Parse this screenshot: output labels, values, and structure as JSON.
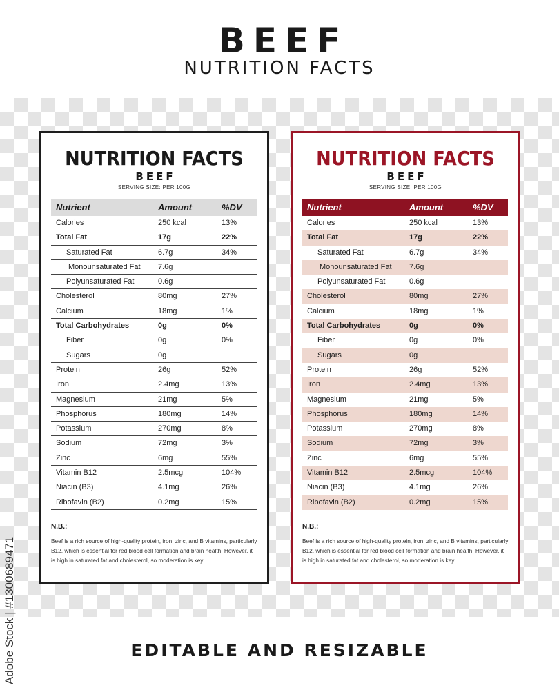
{
  "header": {
    "title": "BEEF",
    "subtitle": "NUTRITION FACTS"
  },
  "footer": {
    "tagline": "EDITABLE AND RESIZABLE"
  },
  "watermark": {
    "text": "Adobe Stock | #1300689471"
  },
  "colors": {
    "dark": "#1e1e1e",
    "accent": "#9b1526",
    "row_shade": "#eed7cf",
    "header_gray": "#dcdcdc"
  },
  "label": {
    "title": "NUTRITION FACTS",
    "product": "BEEF",
    "serving": "SERVING SIZE: PER 100G",
    "columns": {
      "nutrient": "Nutrient",
      "amount": "Amount",
      "dv": "%DV"
    },
    "rows": [
      {
        "name": "Calories",
        "amount": "250 kcal",
        "dv": "13%",
        "bold": false,
        "indent": 0
      },
      {
        "name": "Total Fat",
        "amount": "17g",
        "dv": "22%",
        "bold": true,
        "indent": 0
      },
      {
        "name": "Saturated Fat",
        "amount": "6.7g",
        "dv": "34%",
        "bold": false,
        "indent": 1
      },
      {
        "name": "Monounsaturated Fat",
        "amount": "7.6g",
        "dv": "",
        "bold": false,
        "indent": 2
      },
      {
        "name": "Polyunsaturated Fat",
        "amount": "0.6g",
        "dv": "",
        "bold": false,
        "indent": 1
      },
      {
        "name": "Cholesterol",
        "amount": "80mg",
        "dv": "27%",
        "bold": false,
        "indent": 0
      },
      {
        "name": "Calcium",
        "amount": "18mg",
        "dv": "1%",
        "bold": false,
        "indent": 0
      },
      {
        "name": "Total Carbohydrates",
        "amount": "0g",
        "dv": "0%",
        "bold": true,
        "indent": 0
      },
      {
        "name": "Fiber",
        "amount": "0g",
        "dv": "0%",
        "bold": false,
        "indent": 1
      },
      {
        "name": "Sugars",
        "amount": "0g",
        "dv": "",
        "bold": false,
        "indent": 1
      },
      {
        "name": "Protein",
        "amount": "26g",
        "dv": "52%",
        "bold": false,
        "indent": 0
      },
      {
        "name": "Iron",
        "amount": "2.4mg",
        "dv": "13%",
        "bold": false,
        "indent": 0
      },
      {
        "name": "Magnesium",
        "amount": "21mg",
        "dv": "5%",
        "bold": false,
        "indent": 0
      },
      {
        "name": "Phosphorus",
        "amount": "180mg",
        "dv": "14%",
        "bold": false,
        "indent": 0
      },
      {
        "name": "Potassium",
        "amount": "270mg",
        "dv": "8%",
        "bold": false,
        "indent": 0
      },
      {
        "name": "Sodium",
        "amount": "72mg",
        "dv": "3%",
        "bold": false,
        "indent": 0
      },
      {
        "name": "Zinc",
        "amount": "6mg",
        "dv": "55%",
        "bold": false,
        "indent": 0
      },
      {
        "name": "Vitamin B12",
        "amount": "2.5mcg",
        "dv": "104%",
        "bold": false,
        "indent": 0
      },
      {
        "name": "Niacin (B3)",
        "amount": "4.1mg",
        "dv": "26%",
        "bold": false,
        "indent": 0
      },
      {
        "name": "Ribofavin (B2)",
        "amount": "0.2mg",
        "dv": "15%",
        "bold": false,
        "indent": 0
      }
    ],
    "note_title": "N.B.:",
    "note_text": "Beef is a rich source of high-quality protein, iron, zinc, and B vitamins, particularly B12, which is essential for red blood cell formation and brain health. However, it is high in saturated fat and cholesterol, so moderation is key."
  }
}
